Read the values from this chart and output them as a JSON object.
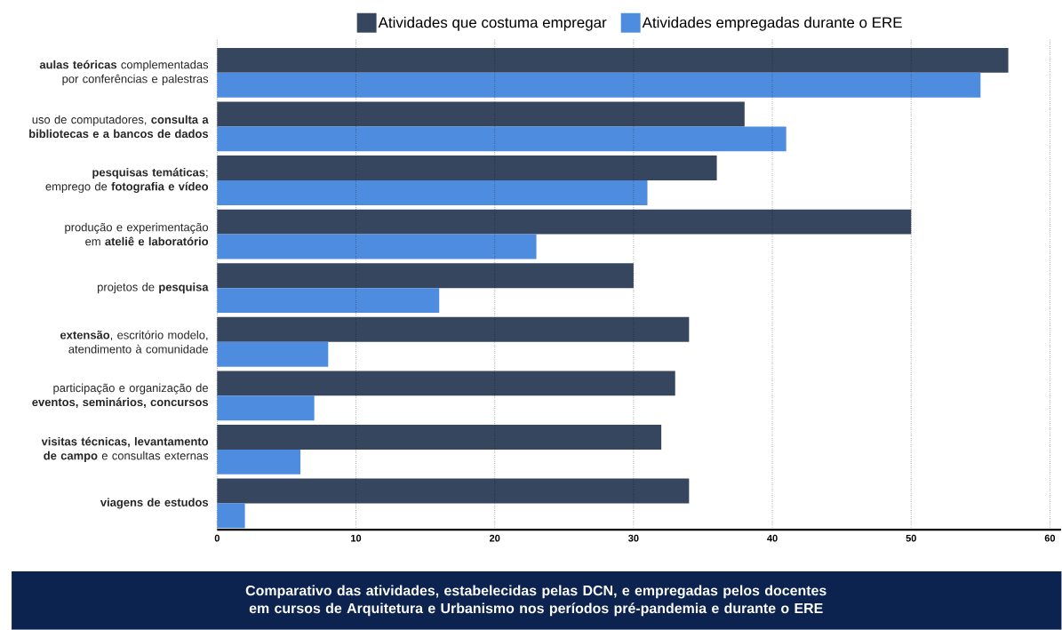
{
  "chart_data": {
    "type": "bar",
    "orientation": "horizontal",
    "title": "Comparativo das atividades, estabelecidas pelas DCN, e empregadas pelos docentes em cursos de Arquitetura e Urbanismo nos períodos pré-pandemia e durante o ERE",
    "categories": [
      "**aulas teóricas** complementadas por conferências e palestras",
      "uso de computadores, **consulta a bibliotecas e a bancos de dados**",
      "**pesquisas temáticas**; emprego de **fotografia e vídeo**",
      "produção e experimentação em **ateliê e laboratório**",
      "projetos de **pesquisa**",
      "**extensão**, escritório modelo, atendimento à comunidade",
      "participação e organização de **eventos, seminários, concursos**",
      "**visitas técnicas, levantamento de campo** e consultas externas",
      "**viagens de estudos**"
    ],
    "series": [
      {
        "name": "Atividades que costuma empregar",
        "color": "#36465f",
        "values": [
          57,
          38,
          36,
          50,
          30,
          34,
          33,
          32,
          34
        ]
      },
      {
        "name": "Atividades empregadas durante o ERE",
        "color": "#4e8ce0",
        "values": [
          55,
          41,
          31,
          23,
          16,
          8,
          7,
          6,
          2
        ]
      }
    ],
    "xlim": [
      0,
      60.8
    ],
    "xticks": [
      0,
      10,
      20,
      30,
      40,
      50,
      60
    ],
    "grid": "x",
    "legend": "top"
  }
}
